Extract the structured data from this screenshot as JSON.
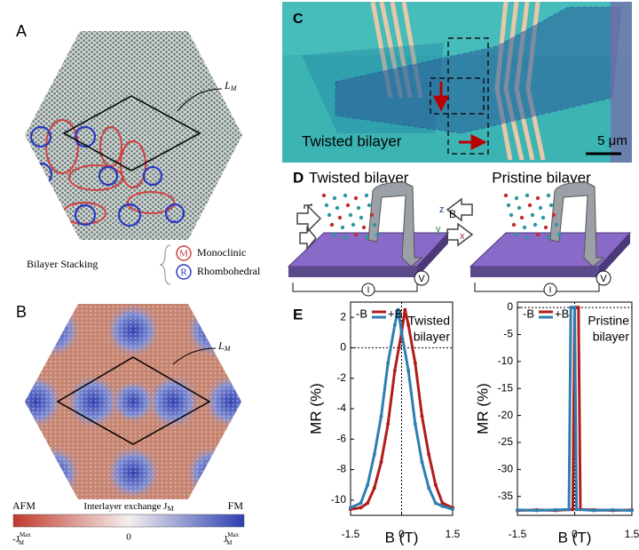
{
  "panels": {
    "a": {
      "label": "A",
      "lm": "L",
      "lm_sub": "M",
      "legend_title": "Bilayer Stacking",
      "m_symbol": "M",
      "m_text": "Monoclinic",
      "r_symbol": "R",
      "r_text": "Rhombohedral"
    },
    "b": {
      "label": "B",
      "lm": "L",
      "lm_sub": "M",
      "left": "AFM",
      "right": "FM",
      "colorbar_title": "Interlayer exchange J",
      "colorbar_sub": "M",
      "tick_left": "-J",
      "tick_mid": "0",
      "tick_right": "J",
      "tick_sub": "M",
      "tick_sup": "Max"
    },
    "c": {
      "label": "C",
      "caption": "Twisted bilayer",
      "scale": "5 μm"
    },
    "d": {
      "label": "D",
      "left": "Twisted bilayer",
      "right": "Pristine bilayer",
      "axis_z": "z",
      "axis_b": "B",
      "axis_y": "y",
      "axis_x": "x",
      "voltmeter": "V",
      "ammeter": "I"
    },
    "e": {
      "label": "E"
    }
  },
  "chart_data": [
    {
      "type": "line",
      "x_label": "B (T)",
      "y_label": "MR (%)",
      "legend_left": "-B",
      "legend_right": "+B",
      "annotation": [
        "Twisted",
        "bilayer"
      ],
      "xlim": [
        -1.5,
        1.5
      ],
      "xticks": [
        -1.5,
        0,
        1.5
      ],
      "ylim": [
        -11,
        3
      ],
      "yticks": [
        2,
        0,
        -2,
        -4,
        -6,
        -8,
        -10
      ],
      "series": [
        {
          "color": "#b31b1b",
          "x": [
            -1.5,
            -1.2,
            -1,
            -0.8,
            -0.6,
            -0.4,
            -0.2,
            0,
            0.1,
            0.2,
            0.4,
            0.6,
            0.8,
            1,
            1.2,
            1.5
          ],
          "values": [
            -10.6,
            -10.5,
            -10.2,
            -9.2,
            -7.5,
            -5,
            -1.5,
            1,
            2.5,
            1.5,
            -1,
            -4.5,
            -7,
            -9,
            -10.2,
            -10.5
          ]
        },
        {
          "color": "#2e7fb0",
          "x": [
            -1.5,
            -1.2,
            -1,
            -0.8,
            -0.6,
            -0.4,
            -0.2,
            -0.1,
            0,
            0.2,
            0.4,
            0.6,
            0.8,
            1,
            1.2,
            1.5
          ],
          "values": [
            -10.5,
            -10.2,
            -9,
            -7,
            -4.5,
            -1,
            1.5,
            2.5,
            1,
            -1.5,
            -5,
            -7.5,
            -9.2,
            -10.2,
            -10.4,
            -10.6
          ]
        }
      ]
    },
    {
      "type": "line",
      "x_label": "B (T)",
      "y_label": "MR (%)",
      "legend_left": "-B",
      "legend_right": "+B",
      "annotation": [
        "Pristine",
        "bilayer"
      ],
      "xlim": [
        -1.5,
        1.5
      ],
      "xticks": [
        -1.5,
        0,
        1.5
      ],
      "ylim": [
        -38.5,
        1
      ],
      "yticks": [
        0,
        -5,
        -10,
        -15,
        -20,
        -25,
        -30,
        -35
      ],
      "series": [
        {
          "color": "#b31b1b",
          "x": [
            -1.5,
            -1,
            -0.5,
            -0.05,
            0,
            0.05,
            0.1,
            0.15,
            0.5,
            1,
            1.5
          ],
          "values": [
            -37.6,
            -37.5,
            -37.6,
            -37.4,
            0,
            0,
            0,
            -37.4,
            -37.5,
            -37.6,
            -37.5
          ]
        },
        {
          "color": "#2e7fb0",
          "x": [
            -1.5,
            -1,
            -0.5,
            -0.15,
            -0.1,
            -0.05,
            0,
            0.05,
            0.5,
            1,
            1.5
          ],
          "values": [
            -37.5,
            -37.6,
            -37.5,
            -37.4,
            0,
            0,
            0,
            -37.4,
            -37.6,
            -37.5,
            -37.6
          ]
        }
      ]
    }
  ]
}
